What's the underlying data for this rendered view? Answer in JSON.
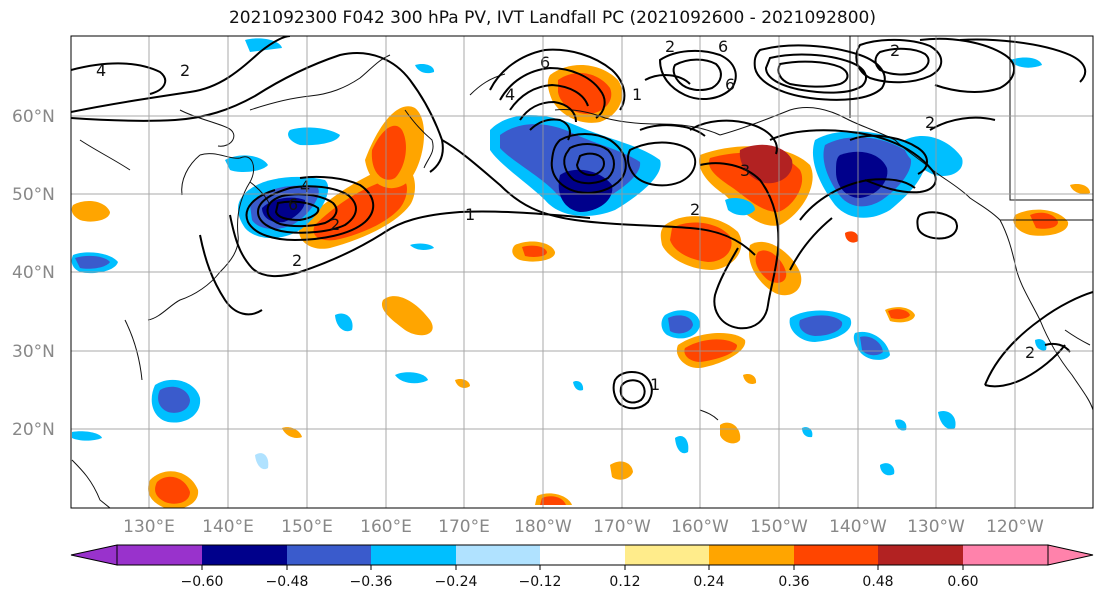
{
  "title": "2021092300 F042 300 hPa PV, IVT Landfall PC (2021092600 - 2021092800)",
  "latitude_labels": [
    "60°N",
    "50°N",
    "40°N",
    "30°N",
    "20°N"
  ],
  "longitude_labels": [
    "130°E",
    "140°E",
    "150°E",
    "160°E",
    "170°E",
    "180°W",
    "170°W",
    "160°W",
    "150°W",
    "140°W",
    "130°W",
    "120°W"
  ],
  "colorbar": {
    "tick_labels": [
      "−0.60",
      "−0.48",
      "−0.36",
      "−0.24",
      "−0.12",
      "0.12",
      "0.24",
      "0.36",
      "0.48",
      "0.60"
    ],
    "colors": [
      "#9932cc",
      "#00008b",
      "#3a5bcc",
      "#00bfff",
      "#b0e2ff",
      "#ffffff",
      "#ffec8b",
      "#ffa500",
      "#ff4500",
      "#b22222",
      "#ff82ab"
    ]
  },
  "contour_labels": [
    "4",
    "2",
    "2",
    "6",
    "4",
    "2",
    "1",
    "6",
    "4",
    "2",
    "6",
    "2",
    "2",
    "6",
    "3",
    "2",
    "1",
    "2",
    "1"
  ]
}
